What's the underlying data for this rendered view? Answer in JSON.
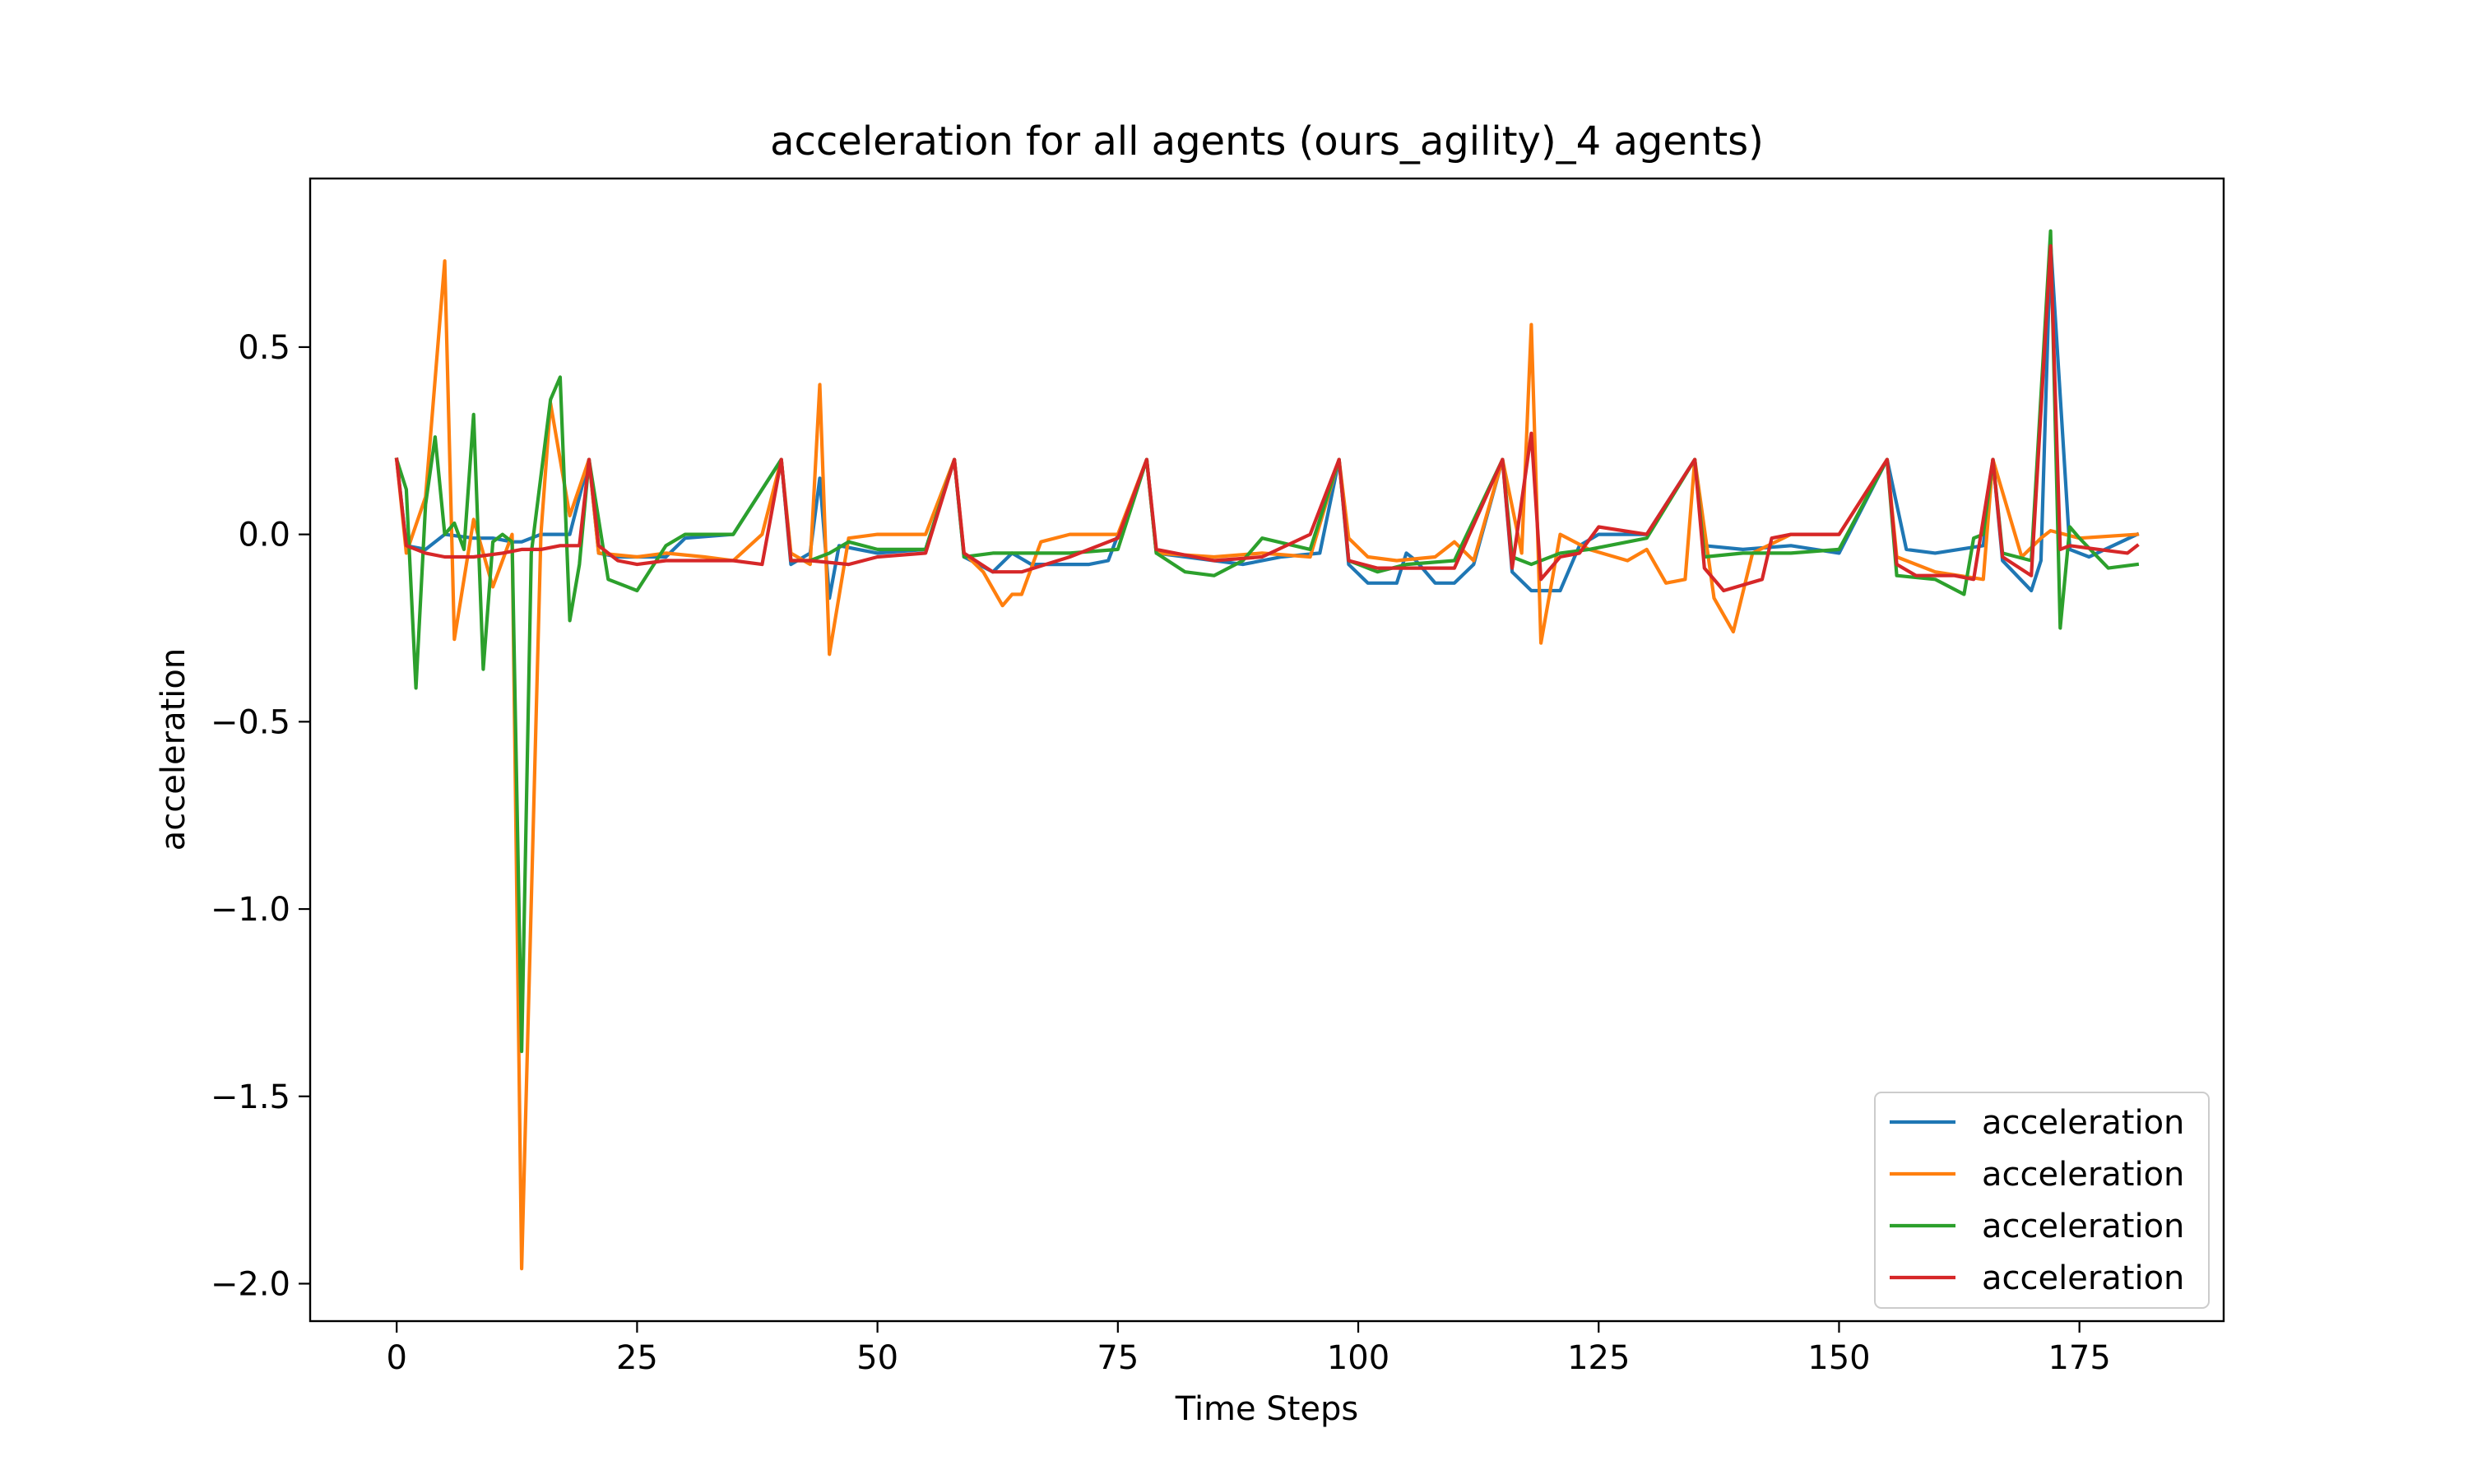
{
  "chart_data": {
    "type": "line",
    "title": "acceleration for all agents (ours_agility)_4 agents)",
    "xlabel": "Time Steps",
    "ylabel": "acceleration",
    "xlim": [
      -9,
      190
    ],
    "ylim": [
      -2.1,
      0.95
    ],
    "x_ticks": [
      0,
      25,
      50,
      75,
      100,
      125,
      150,
      175
    ],
    "x_tick_labels": [
      "0",
      "25",
      "50",
      "75",
      "100",
      "125",
      "150",
      "175"
    ],
    "y_ticks": [
      0.5,
      0.0,
      -0.5,
      -1.0,
      -1.5,
      -2.0
    ],
    "y_tick_labels": [
      "0.5",
      "0.0",
      "−0.5",
      "−1.0",
      "−1.5",
      "−2.0"
    ],
    "grid": false,
    "legend_position": "lower-right",
    "series": [
      {
        "name": "acceleration",
        "color": "#1f77b4",
        "x": [
          0,
          1,
          3,
          5,
          8,
          10,
          12,
          13,
          15,
          18,
          20,
          21,
          23,
          28,
          30,
          35,
          40,
          41,
          43,
          44,
          45,
          46,
          48,
          50,
          55,
          58,
          59,
          62,
          64,
          66,
          68,
          72,
          74,
          78,
          79,
          85,
          88,
          92,
          96,
          98,
          99,
          101,
          104,
          105,
          106,
          108,
          110,
          112,
          115,
          116,
          118,
          121,
          123,
          125,
          130,
          135,
          136,
          140,
          145,
          150,
          155,
          157,
          160,
          165,
          166,
          167,
          170,
          171,
          172,
          174,
          176,
          181
        ],
        "values": [
          0.2,
          -0.03,
          -0.04,
          0.0,
          -0.01,
          -0.01,
          -0.02,
          -0.02,
          0.0,
          0.0,
          0.2,
          -0.05,
          -0.06,
          -0.06,
          -0.01,
          0.0,
          0.2,
          -0.08,
          -0.05,
          0.15,
          -0.17,
          -0.03,
          -0.04,
          -0.05,
          -0.04,
          0.2,
          -0.06,
          -0.1,
          -0.05,
          -0.08,
          -0.08,
          -0.08,
          -0.07,
          0.2,
          -0.05,
          -0.07,
          -0.08,
          -0.06,
          -0.05,
          0.2,
          -0.08,
          -0.13,
          -0.13,
          -0.05,
          -0.07,
          -0.13,
          -0.13,
          -0.08,
          0.2,
          -0.1,
          -0.15,
          -0.15,
          -0.03,
          0.0,
          0.0,
          0.2,
          -0.03,
          -0.04,
          -0.03,
          -0.05,
          0.2,
          -0.04,
          -0.05,
          -0.03,
          0.2,
          -0.07,
          -0.15,
          -0.07,
          0.78,
          -0.04,
          -0.06,
          0.0
        ]
      },
      {
        "name": "acceleration",
        "color": "#ff7f0e",
        "x": [
          0,
          1,
          3,
          5,
          6,
          8,
          10,
          12,
          13,
          15,
          16,
          18,
          20,
          21,
          25,
          28,
          32,
          35,
          38,
          40,
          41,
          43,
          44,
          45,
          47,
          50,
          55,
          58,
          59,
          61,
          63,
          64,
          65,
          67,
          70,
          75,
          78,
          79,
          85,
          90,
          95,
          98,
          99,
          101,
          104,
          108,
          110,
          112,
          115,
          117,
          118,
          119,
          121,
          124,
          128,
          130,
          132,
          134,
          135,
          137,
          139,
          141,
          145,
          150,
          155,
          156,
          160,
          165,
          166,
          169,
          171,
          172,
          175,
          181
        ],
        "values": [
          0.2,
          -0.05,
          0.1,
          0.73,
          -0.28,
          0.04,
          -0.14,
          0.0,
          -1.96,
          0.0,
          0.35,
          0.05,
          0.2,
          -0.05,
          -0.06,
          -0.05,
          -0.06,
          -0.07,
          0.0,
          0.2,
          -0.05,
          -0.08,
          0.4,
          -0.32,
          -0.01,
          0.0,
          0.0,
          0.2,
          -0.05,
          -0.1,
          -0.19,
          -0.16,
          -0.16,
          -0.02,
          0.0,
          0.0,
          0.2,
          -0.05,
          -0.06,
          -0.05,
          -0.06,
          0.2,
          -0.01,
          -0.06,
          -0.07,
          -0.06,
          -0.02,
          -0.07,
          0.2,
          -0.05,
          0.56,
          -0.29,
          0.0,
          -0.04,
          -0.07,
          -0.04,
          -0.13,
          -0.12,
          0.2,
          -0.17,
          -0.26,
          -0.05,
          0.0,
          0.0,
          0.2,
          -0.06,
          -0.1,
          -0.12,
          0.2,
          -0.06,
          -0.01,
          0.01,
          -0.01,
          0.0
        ]
      },
      {
        "name": "acceleration",
        "color": "#2ca02c",
        "x": [
          0,
          1,
          2,
          3,
          4,
          5,
          6,
          7,
          8,
          9,
          10,
          11,
          12,
          13,
          14,
          16,
          17,
          18,
          19,
          20,
          22,
          25,
          28,
          30,
          35,
          40,
          41,
          43,
          45,
          47,
          50,
          55,
          58,
          59,
          62,
          65,
          70,
          75,
          78,
          79,
          82,
          85,
          88,
          90,
          95,
          98,
          99,
          102,
          105,
          110,
          115,
          116,
          118,
          121,
          124,
          130,
          135,
          136,
          140,
          145,
          150,
          155,
          156,
          160,
          163,
          164,
          165,
          166,
          167,
          170,
          172,
          173,
          174,
          175,
          178,
          181
        ],
        "values": [
          0.2,
          0.12,
          -0.41,
          0.08,
          0.26,
          0.0,
          0.03,
          -0.04,
          0.32,
          -0.36,
          -0.02,
          0.0,
          -0.02,
          -1.38,
          -0.05,
          0.36,
          0.42,
          -0.23,
          -0.08,
          0.2,
          -0.12,
          -0.15,
          -0.03,
          0.0,
          0.0,
          0.2,
          -0.07,
          -0.07,
          -0.05,
          -0.02,
          -0.04,
          -0.04,
          0.2,
          -0.06,
          -0.05,
          -0.05,
          -0.05,
          -0.04,
          0.2,
          -0.05,
          -0.1,
          -0.11,
          -0.07,
          -0.01,
          -0.04,
          0.2,
          -0.07,
          -0.1,
          -0.08,
          -0.07,
          0.2,
          -0.06,
          -0.08,
          -0.05,
          -0.04,
          -0.01,
          0.2,
          -0.06,
          -0.05,
          -0.05,
          -0.04,
          0.2,
          -0.11,
          -0.12,
          -0.16,
          -0.01,
          0.0,
          0.2,
          -0.05,
          -0.07,
          0.81,
          -0.25,
          0.02,
          -0.01,
          -0.09,
          -0.08
        ]
      },
      {
        "name": "acceleration",
        "color": "#d62728",
        "x": [
          0,
          1,
          3,
          5,
          8,
          11,
          13,
          15,
          17,
          19,
          20,
          21,
          23,
          25,
          28,
          32,
          35,
          38,
          40,
          41,
          43,
          47,
          50,
          55,
          58,
          59,
          62,
          65,
          70,
          75,
          78,
          79,
          85,
          90,
          95,
          98,
          99,
          102,
          105,
          110,
          115,
          116,
          118,
          119,
          121,
          123,
          125,
          130,
          135,
          136,
          138,
          142,
          143,
          145,
          150,
          155,
          156,
          158,
          162,
          164,
          166,
          167,
          170,
          172,
          173,
          174,
          177,
          180,
          181
        ],
        "values": [
          0.2,
          -0.03,
          -0.05,
          -0.06,
          -0.06,
          -0.05,
          -0.04,
          -0.04,
          -0.03,
          -0.03,
          0.2,
          -0.03,
          -0.07,
          -0.08,
          -0.07,
          -0.07,
          -0.07,
          -0.08,
          0.2,
          -0.07,
          -0.07,
          -0.08,
          -0.06,
          -0.05,
          0.2,
          -0.05,
          -0.1,
          -0.1,
          -0.06,
          -0.01,
          0.2,
          -0.04,
          -0.07,
          -0.06,
          0.0,
          0.2,
          -0.07,
          -0.09,
          -0.09,
          -0.09,
          0.2,
          -0.09,
          0.27,
          -0.12,
          -0.06,
          -0.05,
          0.02,
          0.0,
          0.2,
          -0.09,
          -0.15,
          -0.12,
          -0.01,
          0.0,
          0.0,
          0.2,
          -0.08,
          -0.11,
          -0.11,
          -0.12,
          0.2,
          -0.06,
          -0.11,
          0.77,
          -0.04,
          -0.03,
          -0.04,
          -0.05,
          -0.03
        ]
      }
    ]
  }
}
